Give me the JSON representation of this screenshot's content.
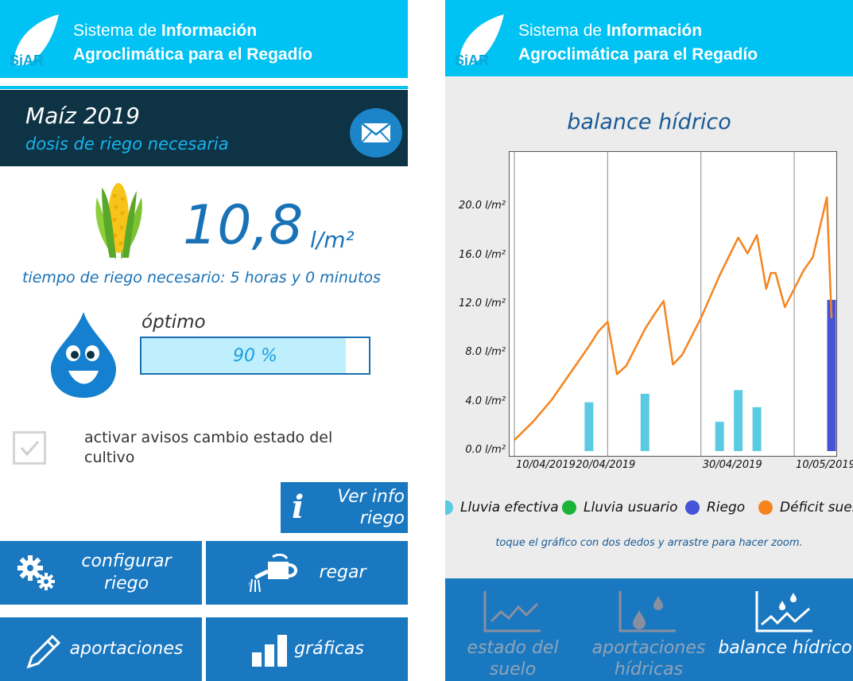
{
  "app": {
    "logo_text": "SiAR",
    "header_line1_normal": "Sistema de ",
    "header_line1_bold": "Información",
    "header_line2": "Agroclimática para el Regadío"
  },
  "crop": {
    "title": "Maíz 2019",
    "subtitle": "dosis de riego necesaria"
  },
  "dose": {
    "value": "10,8",
    "unit": "l/m²",
    "time_text": "tiempo de riego necesario: 5 horas y 0 minutos"
  },
  "status": {
    "label": "óptimo",
    "percent": 90,
    "percent_text": "90 %"
  },
  "alerts": {
    "checked": false,
    "label": "activar avisos cambio estado del cultivo"
  },
  "buttons": {
    "info": "Ver info riego",
    "configure": "configurar riego",
    "water": "regar",
    "contributions": "aportaciones",
    "charts": "gráficas"
  },
  "colors": {
    "header": "#00c2f3",
    "primary": "#1a78c0",
    "dark_bar": "#0d3344",
    "lluvia_efectiva": "#5bcbe3",
    "lluvia_usuario": "#1bb33a",
    "riego": "#4453d8",
    "deficit": "#f5841f"
  },
  "chart_data": {
    "type": "line",
    "title": "balance hídrico",
    "y_ticks": [
      "0.0 l/m²",
      "4.0 l/m²",
      "8.0 l/m²",
      "12.0 l/m²",
      "16.0 l/m²",
      "20.0 l/m²"
    ],
    "x_ticks": [
      "10/04/2019",
      "20/04/2019",
      "30/04/2019",
      "10/05/2019"
    ],
    "ylim": [
      0,
      24
    ],
    "xlim_days": [
      0,
      34
    ],
    "series": [
      {
        "name": "Déficit suel",
        "kind": "line",
        "x": [
          0,
          2,
          4,
          6,
          8,
          9,
          10,
          11,
          12,
          14,
          15,
          16,
          17,
          18,
          20,
          22,
          24,
          25,
          26,
          27,
          27.5,
          28,
          29,
          31,
          32,
          33.5,
          34
        ],
        "y": [
          0.9,
          2.4,
          4.2,
          6.4,
          8.6,
          9.8,
          10.6,
          6.3,
          7.0,
          10.0,
          11.2,
          12.3,
          7.1,
          7.9,
          10.9,
          14.4,
          17.5,
          16.2,
          17.7,
          13.3,
          14.6,
          14.6,
          11.8,
          14.8,
          15.9,
          20.8,
          10.9
        ]
      },
      {
        "name": "Lluvia efectiva",
        "kind": "bar",
        "x": [
          8,
          14,
          22,
          24,
          26
        ],
        "y": [
          4.0,
          4.7,
          2.4,
          5.0,
          3.6
        ]
      },
      {
        "name": "Lluvia usuario",
        "kind": "bar",
        "x": [],
        "y": []
      },
      {
        "name": "Riego",
        "kind": "bar",
        "x": [
          34
        ],
        "y": [
          12.4
        ]
      }
    ],
    "grid": "vertical",
    "legend": "bottom"
  },
  "legend": [
    "Lluvia efectiva",
    "Lluvia usuario",
    "Riego",
    "Déficit suel"
  ],
  "zoom_hint": "toque el gráfico con dos dedos y arrastre para hacer zoom.",
  "nav": {
    "soil": "estado del suelo",
    "contributions": "aportaciones hídricas",
    "balance": "balance hídrico"
  }
}
